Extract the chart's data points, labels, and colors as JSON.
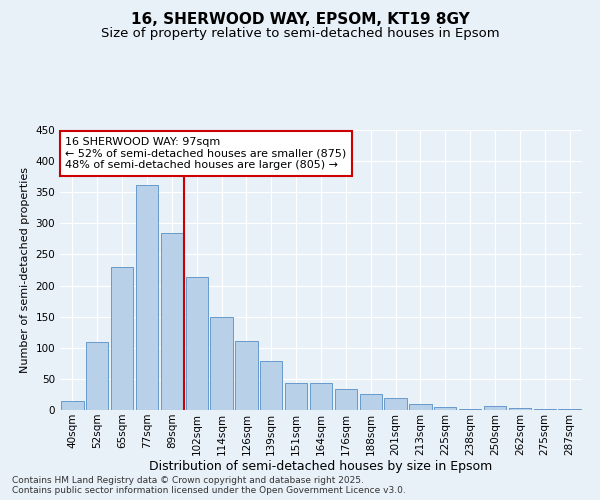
{
  "title": "16, SHERWOOD WAY, EPSOM, KT19 8GY",
  "subtitle": "Size of property relative to semi-detached houses in Epsom",
  "xlabel": "Distribution of semi-detached houses by size in Epsom",
  "ylabel": "Number of semi-detached properties",
  "categories": [
    "40sqm",
    "52sqm",
    "65sqm",
    "77sqm",
    "89sqm",
    "102sqm",
    "114sqm",
    "126sqm",
    "139sqm",
    "151sqm",
    "164sqm",
    "176sqm",
    "188sqm",
    "201sqm",
    "213sqm",
    "225sqm",
    "238sqm",
    "250sqm",
    "262sqm",
    "275sqm",
    "287sqm"
  ],
  "values": [
    15,
    109,
    230,
    362,
    285,
    213,
    150,
    111,
    78,
    44,
    44,
    33,
    26,
    20,
    9,
    5,
    2,
    6,
    3,
    2,
    1
  ],
  "bar_color": "#b8d0e8",
  "bar_edge_color": "#6699cc",
  "vline_color": "#cc0000",
  "annotation_text": "16 SHERWOOD WAY: 97sqm\n← 52% of semi-detached houses are smaller (875)\n48% of semi-detached houses are larger (805) →",
  "annotation_box_color": "#ffffff",
  "annotation_box_edge_color": "#cc0000",
  "ylim": [
    0,
    450
  ],
  "yticks": [
    0,
    50,
    100,
    150,
    200,
    250,
    300,
    350,
    400,
    450
  ],
  "background_color": "#e8f0f8",
  "plot_bg_color": "#e8f0f8",
  "footer": "Contains HM Land Registry data © Crown copyright and database right 2025.\nContains public sector information licensed under the Open Government Licence v3.0.",
  "title_fontsize": 11,
  "subtitle_fontsize": 9.5,
  "xlabel_fontsize": 9,
  "ylabel_fontsize": 8,
  "tick_fontsize": 7.5,
  "annotation_fontsize": 8,
  "footer_fontsize": 6.5
}
